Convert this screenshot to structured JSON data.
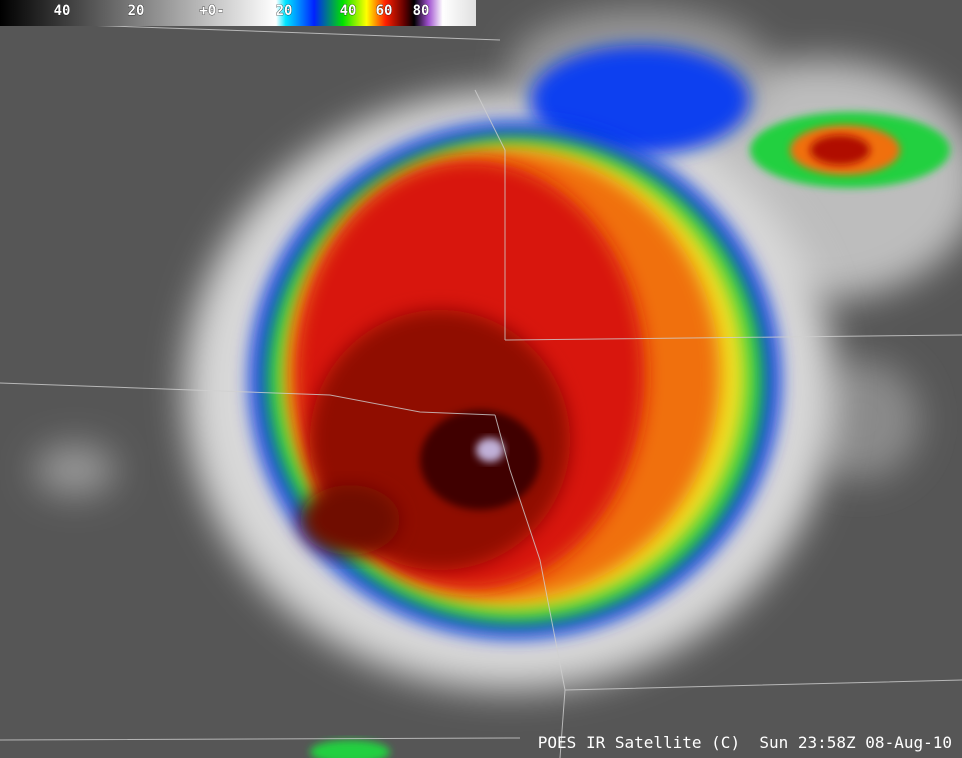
{
  "colorbar": {
    "labels": [
      "40",
      "20",
      "+0-",
      "20",
      "40",
      "60",
      "80"
    ]
  },
  "caption": "POES IR Satellite (C)  Sun 23:58Z 08-Aug-10"
}
